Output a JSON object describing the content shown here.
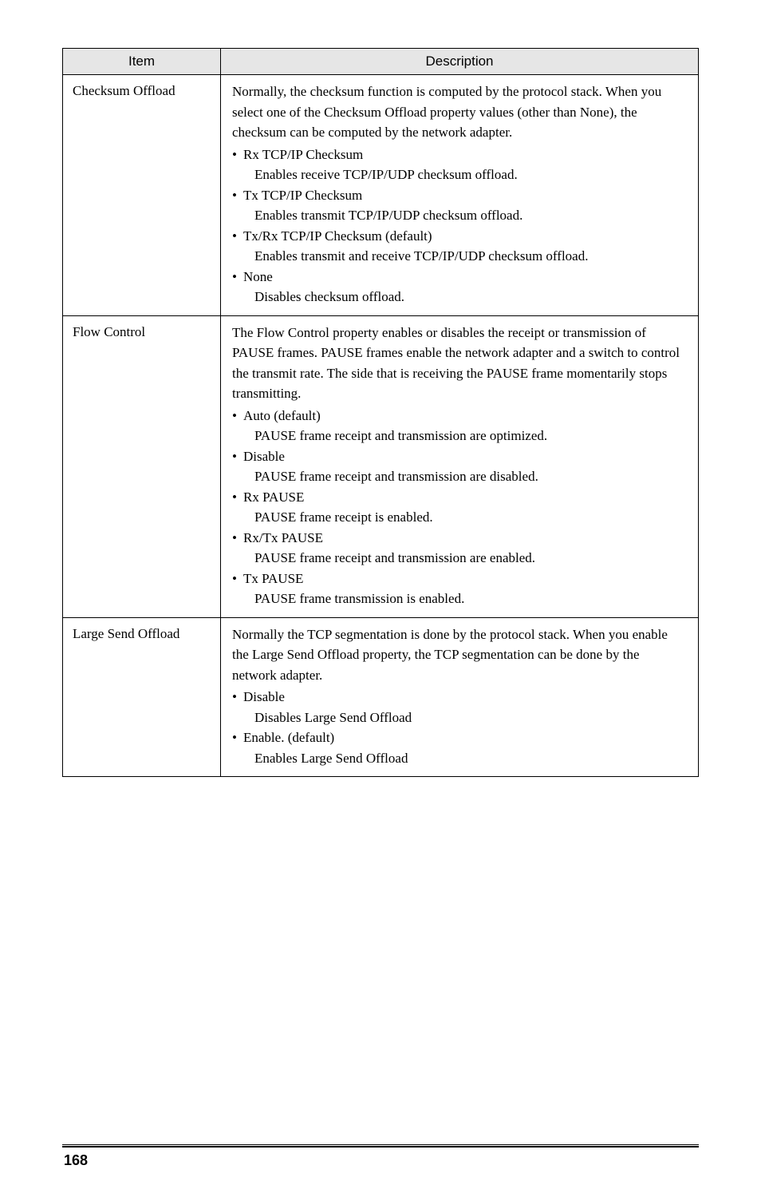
{
  "table": {
    "headers": {
      "item": "Item",
      "description": "Description"
    },
    "rows": [
      {
        "item": "Checksum Offload",
        "desc_lines": [
          {
            "type": "para",
            "text": "Normally, the checksum function is computed by the protocol stack. When you select one of the Checksum Offload property values (other than None), the checksum can be computed by the network adapter."
          },
          {
            "type": "bullet",
            "text": "Rx TCP/IP Checksum"
          },
          {
            "type": "sub",
            "text": "Enables receive TCP/IP/UDP checksum offload."
          },
          {
            "type": "bullet",
            "text": "Tx TCP/IP Checksum"
          },
          {
            "type": "sub",
            "text": "Enables transmit TCP/IP/UDP checksum offload."
          },
          {
            "type": "bullet",
            "text": "Tx/Rx TCP/IP Checksum (default)"
          },
          {
            "type": "sub",
            "text": "Enables transmit and receive TCP/IP/UDP checksum offload."
          },
          {
            "type": "bullet",
            "text": "None"
          },
          {
            "type": "sub",
            "text": "Disables checksum offload."
          }
        ]
      },
      {
        "item": "Flow Control",
        "desc_lines": [
          {
            "type": "para",
            "text": "The Flow Control property enables or disables the receipt or transmission of PAUSE frames. PAUSE frames enable the network adapter and a switch to control the transmit rate. The side that is receiving the PAUSE frame momentarily stops transmitting."
          },
          {
            "type": "bullet",
            "text": "Auto (default)"
          },
          {
            "type": "sub",
            "text": "PAUSE frame receipt and transmission are optimized."
          },
          {
            "type": "bullet",
            "text": "Disable"
          },
          {
            "type": "sub",
            "text": "PAUSE frame receipt and transmission are disabled."
          },
          {
            "type": "bullet",
            "text": "Rx PAUSE"
          },
          {
            "type": "sub",
            "text": "PAUSE frame receipt is enabled."
          },
          {
            "type": "bullet",
            "text": "Rx/Tx PAUSE"
          },
          {
            "type": "sub",
            "text": "PAUSE frame receipt and transmission are enabled."
          },
          {
            "type": "bullet",
            "text": "Tx PAUSE"
          },
          {
            "type": "sub",
            "text": "PAUSE frame transmission is enabled."
          }
        ]
      },
      {
        "item": "Large Send Offload",
        "desc_lines": [
          {
            "type": "para",
            "text": "Normally the TCP segmentation is done by the protocol stack. When you enable the Large Send Offload property, the TCP segmentation can be done by the network adapter."
          },
          {
            "type": "bullet",
            "text": "Disable"
          },
          {
            "type": "sub",
            "text": "Disables Large Send Offload"
          },
          {
            "type": "bullet",
            "text": "Enable. (default)"
          },
          {
            "type": "sub",
            "text": "Enables Large Send Offload"
          }
        ]
      }
    ]
  },
  "footer": {
    "page_number": "168"
  }
}
